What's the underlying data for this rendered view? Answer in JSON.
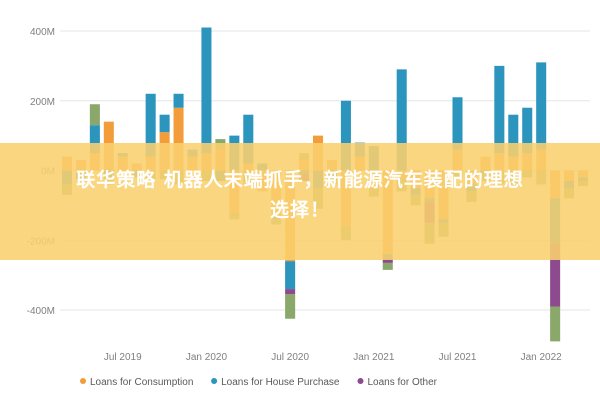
{
  "chart_data": {
    "type": "bar",
    "stacked": true,
    "y_unit_suffix": "M",
    "ylim": [
      -450,
      460
    ],
    "yticks": [
      -400,
      -200,
      0,
      200,
      400
    ],
    "ytick_labels": [
      "-400M",
      "-200M",
      "0M",
      "200M",
      "400M"
    ],
    "x_tick_labels": [
      {
        "label": "Jul 2019",
        "index": 4
      },
      {
        "label": "Jan 2020",
        "index": 10
      },
      {
        "label": "Jul 2020",
        "index": 16
      },
      {
        "label": "Jan 2021",
        "index": 22
      },
      {
        "label": "Jul 2021",
        "index": 28
      },
      {
        "label": "Jan 2022",
        "index": 34
      }
    ],
    "n_periods": 38,
    "grid": true,
    "legend_position": "bottom",
    "series": [
      {
        "name": "Loans for Consumption",
        "color": "#f39c3c",
        "values": [
          40,
          30,
          50,
          140,
          40,
          20,
          40,
          110,
          180,
          40,
          50,
          60,
          -120,
          20,
          -60,
          -130,
          -260,
          30,
          100,
          30,
          -160,
          40,
          -50,
          -240,
          -20,
          -50,
          -80,
          -140,
          60,
          -40,
          40,
          50,
          40,
          50,
          60,
          -80,
          -30,
          -20
        ]
      },
      {
        "name": "Loans for House Purchase",
        "color": "#2b95bd",
        "values": [
          -40,
          -25,
          80,
          -20,
          10,
          -20,
          180,
          50,
          40,
          20,
          360,
          -30,
          100,
          140,
          20,
          -10,
          -80,
          -10,
          -50,
          -20,
          200,
          40,
          70,
          -10,
          290,
          -20,
          -10,
          -10,
          150,
          -20,
          -10,
          250,
          120,
          130,
          250,
          -130,
          -20,
          -10
        ]
      },
      {
        "name": "Loans for Other",
        "color": "#8e4a8e",
        "values": [
          0,
          0,
          0,
          0,
          0,
          0,
          0,
          0,
          0,
          0,
          0,
          0,
          0,
          0,
          0,
          0,
          -15,
          -20,
          0,
          0,
          0,
          0,
          0,
          -15,
          0,
          0,
          -60,
          0,
          0,
          0,
          0,
          0,
          0,
          0,
          0,
          -180,
          0,
          0
        ]
      },
      {
        "name": "",
        "color": "#8aa86a",
        "values": [
          -30,
          0,
          60,
          -20,
          -10,
          0,
          -30,
          -25,
          -40,
          0,
          -30,
          30,
          -20,
          -40,
          0,
          -15,
          -70,
          20,
          -60,
          -20,
          -40,
          0,
          -25,
          -20,
          -40,
          -30,
          -60,
          -40,
          -20,
          -30,
          -20,
          -40,
          -40,
          -20,
          -40,
          -100,
          -30,
          -15
        ]
      }
    ]
  },
  "banner": {
    "line1": "联华策略 机器人末端抓手，新能源汽车装配的理想",
    "line2": "选择！"
  }
}
